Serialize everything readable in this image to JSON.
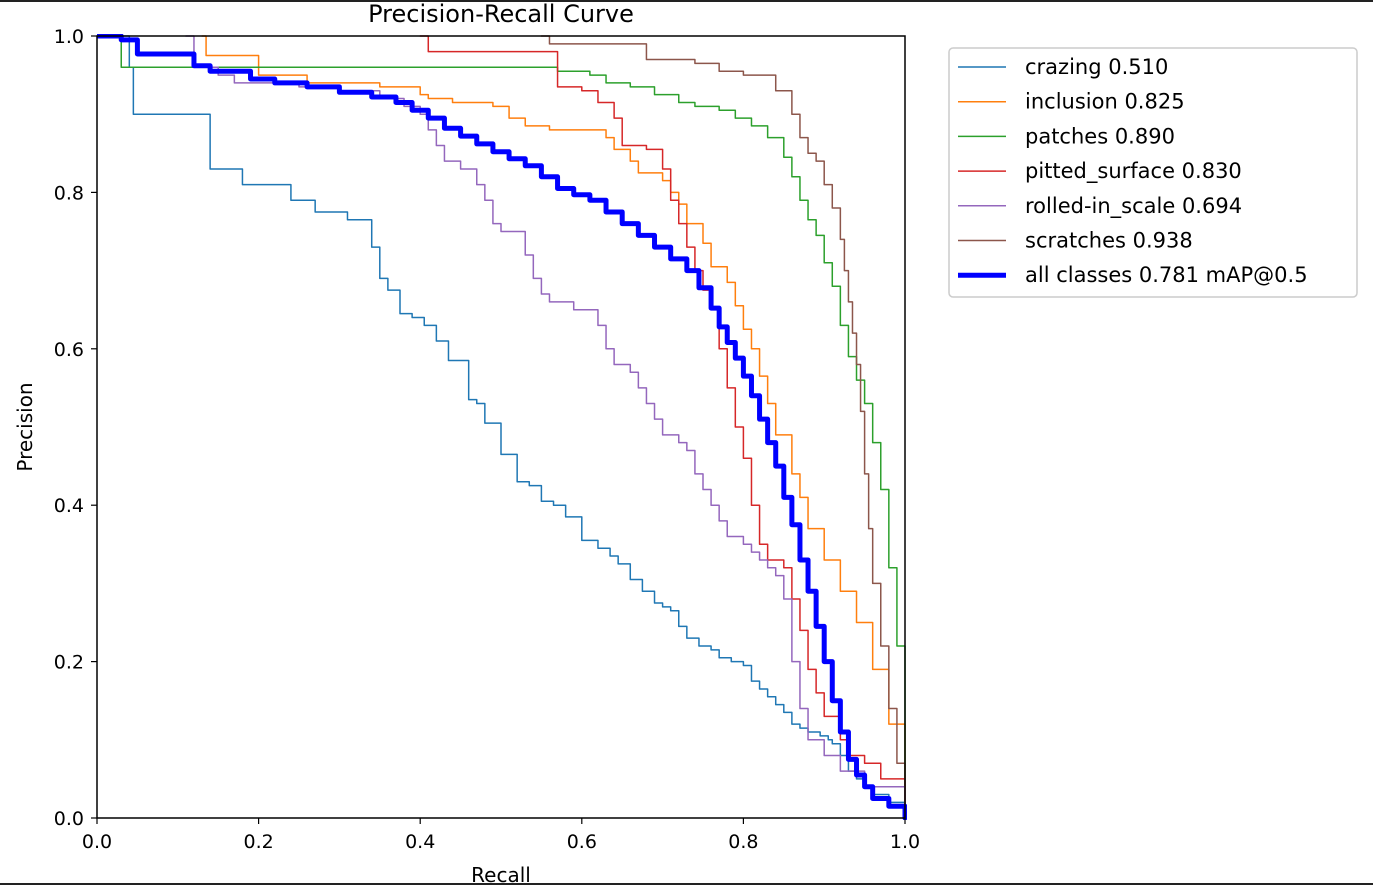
{
  "chart_data": {
    "type": "line",
    "title": "Precision-Recall Curve",
    "xlabel": "Recall",
    "ylabel": "Precision",
    "xlim": [
      0.0,
      1.0
    ],
    "ylim": [
      0.0,
      1.0
    ],
    "xticks": [
      "0.0",
      "0.2",
      "0.4",
      "0.6",
      "0.8",
      "1.0"
    ],
    "yticks": [
      "0.0",
      "0.2",
      "0.4",
      "0.6",
      "0.8",
      "1.0"
    ],
    "grid": false,
    "legend_position": "outside-right-top",
    "series": [
      {
        "name": "crazing 0.510",
        "color": "#1f77b4",
        "width": 1.5,
        "points": [
          [
            0,
            1.0
          ],
          [
            0.04,
            1.0
          ],
          [
            0.04,
            0.96
          ],
          [
            0.045,
            0.9
          ],
          [
            0.14,
            0.9
          ],
          [
            0.14,
            0.83
          ],
          [
            0.18,
            0.83
          ],
          [
            0.18,
            0.81
          ],
          [
            0.24,
            0.81
          ],
          [
            0.24,
            0.79
          ],
          [
            0.27,
            0.79
          ],
          [
            0.27,
            0.775
          ],
          [
            0.31,
            0.775
          ],
          [
            0.31,
            0.765
          ],
          [
            0.34,
            0.765
          ],
          [
            0.34,
            0.73
          ],
          [
            0.35,
            0.69
          ],
          [
            0.36,
            0.675
          ],
          [
            0.375,
            0.675
          ],
          [
            0.375,
            0.645
          ],
          [
            0.39,
            0.64
          ],
          [
            0.405,
            0.63
          ],
          [
            0.42,
            0.61
          ],
          [
            0.435,
            0.605
          ],
          [
            0.435,
            0.585
          ],
          [
            0.455,
            0.585
          ],
          [
            0.46,
            0.535
          ],
          [
            0.47,
            0.53
          ],
          [
            0.48,
            0.505
          ],
          [
            0.49,
            0.505
          ],
          [
            0.5,
            0.465
          ],
          [
            0.52,
            0.465
          ],
          [
            0.52,
            0.43
          ],
          [
            0.535,
            0.425
          ],
          [
            0.55,
            0.405
          ],
          [
            0.565,
            0.4
          ],
          [
            0.58,
            0.385
          ],
          [
            0.59,
            0.385
          ],
          [
            0.6,
            0.355
          ],
          [
            0.62,
            0.345
          ],
          [
            0.635,
            0.335
          ],
          [
            0.645,
            0.325
          ],
          [
            0.66,
            0.305
          ],
          [
            0.675,
            0.29
          ],
          [
            0.69,
            0.275
          ],
          [
            0.7,
            0.27
          ],
          [
            0.71,
            0.265
          ],
          [
            0.72,
            0.245
          ],
          [
            0.73,
            0.23
          ],
          [
            0.745,
            0.22
          ],
          [
            0.76,
            0.215
          ],
          [
            0.77,
            0.205
          ],
          [
            0.785,
            0.2
          ],
          [
            0.8,
            0.195
          ],
          [
            0.81,
            0.175
          ],
          [
            0.82,
            0.165
          ],
          [
            0.83,
            0.155
          ],
          [
            0.84,
            0.145
          ],
          [
            0.85,
            0.135
          ],
          [
            0.86,
            0.12
          ],
          [
            0.87,
            0.115
          ],
          [
            0.88,
            0.11
          ],
          [
            0.895,
            0.105
          ],
          [
            0.905,
            0.1
          ],
          [
            0.91,
            0.095
          ],
          [
            0.92,
            0.08
          ],
          [
            0.93,
            0.06
          ],
          [
            0.94,
            0.05
          ],
          [
            0.95,
            0.04
          ],
          [
            0.96,
            0.03
          ],
          [
            0.98,
            0.02
          ],
          [
            1.0,
            0.0
          ]
        ]
      },
      {
        "name": "inclusion 0.825",
        "color": "#ff7f0e",
        "width": 1.5,
        "points": [
          [
            0.13,
            1.0
          ],
          [
            0.135,
            0.975
          ],
          [
            0.18,
            0.975
          ],
          [
            0.2,
            0.95
          ],
          [
            0.26,
            0.94
          ],
          [
            0.35,
            0.935
          ],
          [
            0.4,
            0.925
          ],
          [
            0.41,
            0.92
          ],
          [
            0.44,
            0.915
          ],
          [
            0.49,
            0.91
          ],
          [
            0.51,
            0.895
          ],
          [
            0.53,
            0.885
          ],
          [
            0.56,
            0.88
          ],
          [
            0.63,
            0.87
          ],
          [
            0.64,
            0.855
          ],
          [
            0.66,
            0.84
          ],
          [
            0.67,
            0.825
          ],
          [
            0.7,
            0.815
          ],
          [
            0.71,
            0.8
          ],
          [
            0.72,
            0.785
          ],
          [
            0.73,
            0.76
          ],
          [
            0.75,
            0.735
          ],
          [
            0.76,
            0.705
          ],
          [
            0.78,
            0.685
          ],
          [
            0.79,
            0.655
          ],
          [
            0.8,
            0.625
          ],
          [
            0.81,
            0.6
          ],
          [
            0.82,
            0.565
          ],
          [
            0.83,
            0.53
          ],
          [
            0.84,
            0.49
          ],
          [
            0.86,
            0.44
          ],
          [
            0.87,
            0.41
          ],
          [
            0.88,
            0.37
          ],
          [
            0.9,
            0.33
          ],
          [
            0.92,
            0.29
          ],
          [
            0.94,
            0.25
          ],
          [
            0.96,
            0.19
          ],
          [
            0.98,
            0.12
          ],
          [
            1.0,
            0.0
          ]
        ]
      },
      {
        "name": "patches 0.890",
        "color": "#2ca02c",
        "width": 1.5,
        "points": [
          [
            0,
            1.0
          ],
          [
            0.03,
            1.0
          ],
          [
            0.03,
            0.96
          ],
          [
            0.56,
            0.96
          ],
          [
            0.57,
            0.955
          ],
          [
            0.61,
            0.95
          ],
          [
            0.63,
            0.94
          ],
          [
            0.66,
            0.935
          ],
          [
            0.69,
            0.925
          ],
          [
            0.72,
            0.915
          ],
          [
            0.74,
            0.91
          ],
          [
            0.77,
            0.905
          ],
          [
            0.79,
            0.895
          ],
          [
            0.81,
            0.885
          ],
          [
            0.83,
            0.87
          ],
          [
            0.85,
            0.845
          ],
          [
            0.86,
            0.82
          ],
          [
            0.87,
            0.79
          ],
          [
            0.88,
            0.765
          ],
          [
            0.89,
            0.745
          ],
          [
            0.9,
            0.71
          ],
          [
            0.91,
            0.68
          ],
          [
            0.92,
            0.63
          ],
          [
            0.93,
            0.59
          ],
          [
            0.94,
            0.56
          ],
          [
            0.95,
            0.53
          ],
          [
            0.96,
            0.48
          ],
          [
            0.97,
            0.42
          ],
          [
            0.98,
            0.32
          ],
          [
            0.99,
            0.22
          ],
          [
            1.0,
            0.0
          ]
        ]
      },
      {
        "name": "pitted_surface 0.830",
        "color": "#d62728",
        "width": 1.5,
        "points": [
          [
            0.4,
            1.0
          ],
          [
            0.41,
            0.98
          ],
          [
            0.56,
            0.98
          ],
          [
            0.57,
            0.935
          ],
          [
            0.6,
            0.93
          ],
          [
            0.62,
            0.915
          ],
          [
            0.64,
            0.895
          ],
          [
            0.65,
            0.86
          ],
          [
            0.68,
            0.855
          ],
          [
            0.7,
            0.83
          ],
          [
            0.71,
            0.79
          ],
          [
            0.72,
            0.76
          ],
          [
            0.73,
            0.73
          ],
          [
            0.74,
            0.7
          ],
          [
            0.75,
            0.675
          ],
          [
            0.76,
            0.65
          ],
          [
            0.77,
            0.6
          ],
          [
            0.78,
            0.55
          ],
          [
            0.79,
            0.5
          ],
          [
            0.8,
            0.46
          ],
          [
            0.81,
            0.4
          ],
          [
            0.82,
            0.35
          ],
          [
            0.83,
            0.33
          ],
          [
            0.85,
            0.32
          ],
          [
            0.86,
            0.28
          ],
          [
            0.87,
            0.24
          ],
          [
            0.88,
            0.19
          ],
          [
            0.89,
            0.16
          ],
          [
            0.9,
            0.13
          ],
          [
            0.92,
            0.1
          ],
          [
            0.93,
            0.08
          ],
          [
            0.95,
            0.07
          ],
          [
            0.97,
            0.05
          ],
          [
            1.0,
            0.0
          ]
        ]
      },
      {
        "name": "rolled-in_scale 0.694",
        "color": "#9467bd",
        "width": 1.5,
        "points": [
          [
            0.11,
            1.0
          ],
          [
            0.12,
            0.96
          ],
          [
            0.15,
            0.95
          ],
          [
            0.17,
            0.94
          ],
          [
            0.25,
            0.935
          ],
          [
            0.3,
            0.93
          ],
          [
            0.35,
            0.92
          ],
          [
            0.38,
            0.91
          ],
          [
            0.4,
            0.9
          ],
          [
            0.41,
            0.88
          ],
          [
            0.42,
            0.86
          ],
          [
            0.43,
            0.84
          ],
          [
            0.45,
            0.83
          ],
          [
            0.47,
            0.81
          ],
          [
            0.48,
            0.79
          ],
          [
            0.49,
            0.76
          ],
          [
            0.5,
            0.75
          ],
          [
            0.53,
            0.72
          ],
          [
            0.54,
            0.69
          ],
          [
            0.55,
            0.67
          ],
          [
            0.56,
            0.66
          ],
          [
            0.59,
            0.65
          ],
          [
            0.62,
            0.63
          ],
          [
            0.63,
            0.6
          ],
          [
            0.64,
            0.58
          ],
          [
            0.66,
            0.57
          ],
          [
            0.67,
            0.55
          ],
          [
            0.68,
            0.53
          ],
          [
            0.69,
            0.51
          ],
          [
            0.7,
            0.49
          ],
          [
            0.72,
            0.48
          ],
          [
            0.73,
            0.47
          ],
          [
            0.74,
            0.44
          ],
          [
            0.75,
            0.42
          ],
          [
            0.76,
            0.4
          ],
          [
            0.77,
            0.38
          ],
          [
            0.78,
            0.36
          ],
          [
            0.8,
            0.35
          ],
          [
            0.81,
            0.34
          ],
          [
            0.82,
            0.33
          ],
          [
            0.83,
            0.32
          ],
          [
            0.84,
            0.31
          ],
          [
            0.85,
            0.28
          ],
          [
            0.86,
            0.2
          ],
          [
            0.87,
            0.14
          ],
          [
            0.88,
            0.1
          ],
          [
            0.9,
            0.08
          ],
          [
            0.92,
            0.06
          ],
          [
            0.95,
            0.04
          ],
          [
            1.0,
            0.0
          ]
        ]
      },
      {
        "name": "scratches 0.938",
        "color": "#8c564b",
        "width": 1.5,
        "points": [
          [
            0.55,
            1.0
          ],
          [
            0.56,
            0.99
          ],
          [
            0.66,
            0.99
          ],
          [
            0.68,
            0.97
          ],
          [
            0.74,
            0.965
          ],
          [
            0.77,
            0.955
          ],
          [
            0.8,
            0.95
          ],
          [
            0.84,
            0.93
          ],
          [
            0.86,
            0.9
          ],
          [
            0.87,
            0.87
          ],
          [
            0.88,
            0.85
          ],
          [
            0.89,
            0.84
          ],
          [
            0.9,
            0.81
          ],
          [
            0.91,
            0.78
          ],
          [
            0.92,
            0.74
          ],
          [
            0.925,
            0.7
          ],
          [
            0.93,
            0.66
          ],
          [
            0.935,
            0.62
          ],
          [
            0.94,
            0.58
          ],
          [
            0.945,
            0.52
          ],
          [
            0.95,
            0.44
          ],
          [
            0.955,
            0.37
          ],
          [
            0.96,
            0.3
          ],
          [
            0.97,
            0.22
          ],
          [
            0.98,
            0.14
          ],
          [
            0.99,
            0.07
          ],
          [
            1.0,
            0.0
          ]
        ]
      },
      {
        "name": "all classes 0.781 mAP@0.5",
        "color": "#0000ff",
        "width": 5,
        "points": [
          [
            0,
            1.0
          ],
          [
            0.03,
            0.995
          ],
          [
            0.05,
            0.977
          ],
          [
            0.11,
            0.977
          ],
          [
            0.12,
            0.962
          ],
          [
            0.14,
            0.955
          ],
          [
            0.19,
            0.945
          ],
          [
            0.22,
            0.94
          ],
          [
            0.26,
            0.935
          ],
          [
            0.3,
            0.928
          ],
          [
            0.34,
            0.922
          ],
          [
            0.37,
            0.915
          ],
          [
            0.39,
            0.905
          ],
          [
            0.41,
            0.895
          ],
          [
            0.43,
            0.882
          ],
          [
            0.45,
            0.872
          ],
          [
            0.47,
            0.862
          ],
          [
            0.49,
            0.852
          ],
          [
            0.51,
            0.843
          ],
          [
            0.53,
            0.834
          ],
          [
            0.55,
            0.82
          ],
          [
            0.57,
            0.805
          ],
          [
            0.59,
            0.797
          ],
          [
            0.61,
            0.79
          ],
          [
            0.63,
            0.775
          ],
          [
            0.65,
            0.76
          ],
          [
            0.67,
            0.745
          ],
          [
            0.69,
            0.73
          ],
          [
            0.71,
            0.715
          ],
          [
            0.73,
            0.7
          ],
          [
            0.745,
            0.678
          ],
          [
            0.76,
            0.652
          ],
          [
            0.77,
            0.628
          ],
          [
            0.78,
            0.608
          ],
          [
            0.79,
            0.588
          ],
          [
            0.8,
            0.565
          ],
          [
            0.81,
            0.54
          ],
          [
            0.82,
            0.51
          ],
          [
            0.83,
            0.48
          ],
          [
            0.84,
            0.45
          ],
          [
            0.85,
            0.41
          ],
          [
            0.86,
            0.375
          ],
          [
            0.87,
            0.33
          ],
          [
            0.88,
            0.29
          ],
          [
            0.89,
            0.245
          ],
          [
            0.9,
            0.2
          ],
          [
            0.91,
            0.15
          ],
          [
            0.92,
            0.11
          ],
          [
            0.93,
            0.075
          ],
          [
            0.94,
            0.055
          ],
          [
            0.95,
            0.04
          ],
          [
            0.96,
            0.025
          ],
          [
            0.98,
            0.015
          ],
          [
            1.0,
            0.0
          ]
        ]
      }
    ]
  }
}
